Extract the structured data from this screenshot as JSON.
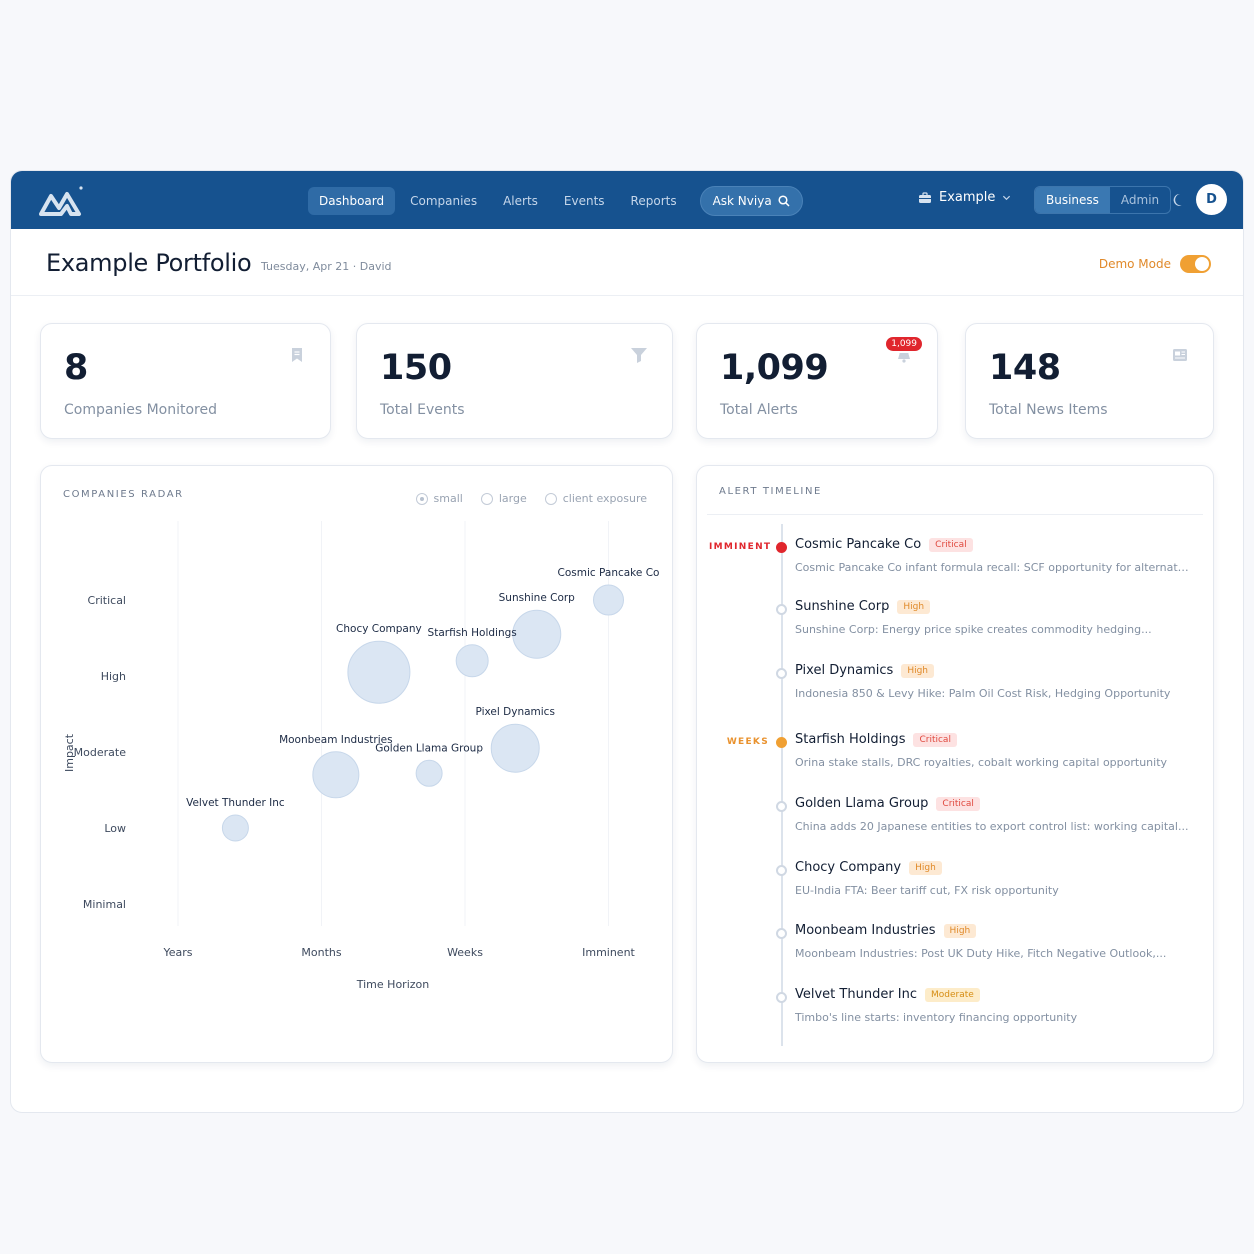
{
  "nav": {
    "items": [
      {
        "label": "Dashboard",
        "active": true
      },
      {
        "label": "Companies",
        "active": false
      },
      {
        "label": "Alerts",
        "active": false
      },
      {
        "label": "Events",
        "active": false
      },
      {
        "label": "Reports",
        "active": false
      }
    ],
    "ask_label": "Ask Nviya",
    "org_label": "Example",
    "segments": [
      {
        "label": "Business",
        "active": true
      },
      {
        "label": "Admin",
        "active": false
      }
    ],
    "avatar_initial": "D"
  },
  "header": {
    "title": "Example Portfolio",
    "subtitle": "Tuesday, Apr 21 · David",
    "demo_label": "Demo Mode"
  },
  "stats": [
    {
      "value": "8",
      "label": "Companies Monitored",
      "icon": "bookmark-icon"
    },
    {
      "value": "150",
      "label": "Total Events",
      "icon": "filter-icon"
    },
    {
      "value": "1,099",
      "label": "Total Alerts",
      "icon": "bell-icon",
      "badge": "1,099"
    },
    {
      "value": "148",
      "label": "Total News Items",
      "icon": "newspaper-icon"
    }
  ],
  "radar": {
    "title": "COMPANIES RADAR",
    "size_options": [
      "small",
      "large",
      "client exposure"
    ]
  },
  "chart_data": {
    "type": "scatter",
    "xlabel": "Time Horizon",
    "ylabel": "Impact",
    "x_categories": [
      "Years",
      "Months",
      "Weeks",
      "Imminent"
    ],
    "y_categories": [
      "Minimal",
      "Low",
      "Moderate",
      "High",
      "Critical"
    ],
    "points": [
      {
        "name": "Cosmic Pancake Co",
        "x": 4.0,
        "y": 5.0,
        "size": 15
      },
      {
        "name": "Sunshine Corp",
        "x": 3.5,
        "y": 4.55,
        "size": 24
      },
      {
        "name": "Starfish Holdings",
        "x": 3.05,
        "y": 4.2,
        "size": 16
      },
      {
        "name": "Chocy Company",
        "x": 2.4,
        "y": 4.05,
        "size": 31
      },
      {
        "name": "Pixel Dynamics",
        "x": 3.35,
        "y": 3.05,
        "size": 24
      },
      {
        "name": "Golden Llama Group",
        "x": 2.75,
        "y": 2.72,
        "size": 13
      },
      {
        "name": "Moonbeam Industries",
        "x": 2.1,
        "y": 2.7,
        "size": 23
      },
      {
        "name": "Velvet Thunder Inc",
        "x": 1.4,
        "y": 2.0,
        "size": 13
      }
    ]
  },
  "timeline": {
    "title": "ALERT TIMELINE",
    "items": [
      {
        "group": "IMMINENT",
        "group_color": "#e0262d",
        "marker": "red",
        "name": "Cosmic Pancake Co",
        "severity": "Critical",
        "sev_class": "sev-critical",
        "desc": "Cosmic Pancake Co infant formula recall: SCF opportunity for alternativ..."
      },
      {
        "group": "",
        "group_color": "",
        "marker": "",
        "name": "Sunshine Corp",
        "severity": "High",
        "sev_class": "sev-high",
        "desc": "Sunshine Corp: Energy price spike creates commodity hedging..."
      },
      {
        "group": "",
        "group_color": "",
        "marker": "",
        "name": "Pixel Dynamics",
        "severity": "High",
        "sev_class": "sev-high",
        "desc": "Indonesia 850 & Levy Hike: Palm Oil Cost Risk, Hedging Opportunity"
      },
      {
        "group": "WEEKS",
        "group_color": "#e9922e",
        "marker": "orange",
        "name": "Starfish Holdings",
        "severity": "Critical",
        "sev_class": "sev-critical",
        "desc": "Orina stake stalls, DRC royalties, cobalt working capital opportunity"
      },
      {
        "group": "",
        "group_color": "",
        "marker": "",
        "name": "Golden Llama Group",
        "severity": "Critical",
        "sev_class": "sev-critical",
        "desc": "China adds 20 Japanese entities to export control list: working capital..."
      },
      {
        "group": "",
        "group_color": "",
        "marker": "",
        "name": "Chocy Company",
        "severity": "High",
        "sev_class": "sev-high",
        "desc": "EU-India FTA: Beer tariff cut, FX risk opportunity"
      },
      {
        "group": "",
        "group_color": "",
        "marker": "",
        "name": "Moonbeam Industries",
        "severity": "High",
        "sev_class": "sev-high",
        "desc": "Moonbeam Industries: Post UK Duty Hike, Fitch Negative Outlook,..."
      },
      {
        "group": "",
        "group_color": "",
        "marker": "",
        "name": "Velvet Thunder Inc",
        "severity": "Moderate",
        "sev_class": "sev-moderate",
        "desc": "Timbo's line starts: inventory financing opportunity"
      }
    ]
  }
}
